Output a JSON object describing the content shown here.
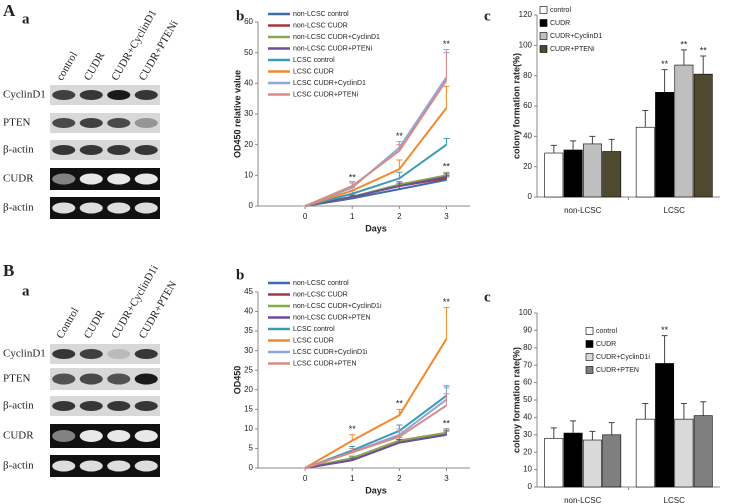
{
  "figure": {
    "blots": [
      {
        "panel": "A",
        "subpanel": "a",
        "lanes": [
          "control",
          "CUDR",
          "CUDR+CyclinD1",
          "CUDR+PTENi"
        ],
        "rows": [
          "CyclinD1",
          "PTEN",
          "β-actin",
          "CUDR",
          "β-actin"
        ]
      },
      {
        "panel": "B",
        "subpanel": "a",
        "lanes": [
          "Control",
          "CUDR",
          "CUDR+CyclinD1i",
          "CUDR+PTEN"
        ],
        "rows": [
          "CyclinD1",
          "PTEN",
          "β-actin",
          "CUDR",
          "β-actin"
        ]
      }
    ]
  },
  "chart_data": [
    {
      "type": "line",
      "panel": "b",
      "y_label": "OD450 relative value",
      "x_label": "Days",
      "categories": [
        "0",
        "1",
        "2",
        "3"
      ],
      "ylim": [
        0,
        60
      ],
      "yticks": [
        0,
        10,
        20,
        30,
        40,
        50,
        60
      ],
      "grid": false,
      "legend": "top-left",
      "series": [
        {
          "name": "non-LCSC control",
          "color": "#3f6ab0",
          "values": [
            0,
            2.5,
            5.5,
            8.5
          ],
          "errors": [
            0,
            0.5,
            1,
            1
          ]
        },
        {
          "name": "non-LCSC CUDR",
          "color": "#a8383a",
          "values": [
            0,
            3,
            6.5,
            9
          ],
          "errors": [
            0,
            0.5,
            1,
            1
          ]
        },
        {
          "name": "non-LCSC CUDR+CyclinD1",
          "color": "#89a94a",
          "values": [
            0,
            3,
            7,
            10
          ],
          "errors": [
            0,
            0.5,
            1,
            1
          ],
          "annotations": [
            null,
            null,
            null,
            "**"
          ]
        },
        {
          "name": "non-LCSC CUDR+PTENi",
          "color": "#6f4f95",
          "values": [
            0,
            3,
            6.5,
            9.5
          ],
          "errors": [
            0,
            0.5,
            1,
            1
          ]
        },
        {
          "name": "LCSC control",
          "color": "#3a9bb5",
          "values": [
            0,
            4,
            9,
            20
          ],
          "errors": [
            0,
            1,
            2,
            2
          ]
        },
        {
          "name": "LCSC CUDR",
          "color": "#f08a2c",
          "values": [
            0,
            5,
            12,
            32
          ],
          "errors": [
            0,
            1,
            3,
            7
          ]
        },
        {
          "name": "LCSC CUDR+CyclinD1",
          "color": "#8ea6d8",
          "values": [
            0,
            6,
            19,
            42
          ],
          "errors": [
            0,
            1.5,
            2,
            9
          ],
          "annotations": [
            null,
            "**",
            "**",
            "**"
          ]
        },
        {
          "name": "LCSC CUDR+PTENi",
          "color": "#d98a88",
          "values": [
            0,
            6.5,
            18,
            41
          ],
          "errors": [
            0,
            1.5,
            2,
            9
          ]
        }
      ]
    },
    {
      "type": "bar",
      "panel": "c",
      "y_label": "colony formation rate(%)",
      "categories": [
        "non-LCSC",
        "LCSC"
      ],
      "ylim": [
        0,
        120
      ],
      "yticks": [
        0,
        20,
        40,
        60,
        80,
        100,
        120
      ],
      "grid": false,
      "legend": "top-left",
      "series": [
        {
          "name": "control",
          "color": "#ffffff",
          "values": [
            29,
            46
          ],
          "errors": [
            5,
            11
          ]
        },
        {
          "name": "CUDR",
          "color": "#000000",
          "values": [
            31,
            69
          ],
          "errors": [
            6,
            15
          ],
          "annotations": [
            null,
            "**"
          ]
        },
        {
          "name": "CUDR+CyclinD1",
          "color": "#bfbfbf",
          "values": [
            35,
            87
          ],
          "errors": [
            5,
            10
          ],
          "annotations": [
            null,
            "**"
          ]
        },
        {
          "name": "CUDR+PTENi",
          "color": "#4f4a2f",
          "values": [
            30,
            81
          ],
          "errors": [
            8,
            12
          ],
          "annotations": [
            null,
            "**"
          ]
        }
      ]
    },
    {
      "type": "line",
      "panel": "b",
      "y_label": "OD450",
      "x_label": "Days",
      "categories": [
        "0",
        "1",
        "2",
        "3"
      ],
      "ylim": [
        0,
        45
      ],
      "yticks": [
        0,
        5,
        10,
        15,
        20,
        25,
        30,
        35,
        40,
        45
      ],
      "grid": false,
      "legend": "top-left",
      "series": [
        {
          "name": "non-LCSC control",
          "color": "#3f6ab0",
          "values": [
            0,
            2,
            6.5,
            8.5
          ],
          "errors": [
            0,
            0.5,
            0.8,
            1
          ]
        },
        {
          "name": "non-LCSC CUDR",
          "color": "#a8383a",
          "values": [
            0,
            2.5,
            7,
            9
          ],
          "errors": [
            0,
            0.5,
            0.8,
            1
          ],
          "annotations": [
            null,
            null,
            null,
            "**"
          ]
        },
        {
          "name": "non-LCSC CUDR+CyclinD1i",
          "color": "#89a94a",
          "values": [
            0,
            2.5,
            7,
            9
          ],
          "errors": [
            0,
            0.5,
            0.8,
            1
          ]
        },
        {
          "name": "non-LCSC CUDR+PTEN",
          "color": "#6f4f95",
          "values": [
            0,
            2,
            6.5,
            8.5
          ],
          "errors": [
            0,
            0.5,
            0.8,
            1
          ]
        },
        {
          "name": "LCSC control",
          "color": "#3a9bb5",
          "values": [
            0,
            4.5,
            9.5,
            18.5
          ],
          "errors": [
            0,
            1,
            1.5,
            2.5
          ]
        },
        {
          "name": "LCSC CUDR",
          "color": "#f08a2c",
          "values": [
            0,
            7,
            13.5,
            33
          ],
          "errors": [
            0,
            1.5,
            1.5,
            8
          ],
          "annotations": [
            null,
            "**",
            "**",
            "**"
          ]
        },
        {
          "name": "LCSC CUDR+CyclinD1i",
          "color": "#8ea6d8",
          "values": [
            0,
            4,
            8.5,
            17.5
          ],
          "errors": [
            0,
            1,
            1.5,
            3
          ]
        },
        {
          "name": "LCSC CUDR+PTEN",
          "color": "#d98a88",
          "values": [
            0,
            4,
            8,
            16
          ],
          "errors": [
            0,
            1,
            1.5,
            3
          ]
        }
      ]
    },
    {
      "type": "bar",
      "panel": "c",
      "y_label": "colony formation rate(%)",
      "categories": [
        "non-LCSC",
        "LCSC"
      ],
      "ylim": [
        0,
        100
      ],
      "yticks": [
        0,
        10,
        20,
        30,
        40,
        50,
        60,
        70,
        80,
        90,
        100
      ],
      "grid": false,
      "legend": "top-left",
      "series": [
        {
          "name": "control",
          "color": "#ffffff",
          "values": [
            28,
            39
          ],
          "errors": [
            6,
            9
          ]
        },
        {
          "name": "CUDR",
          "color": "#000000",
          "values": [
            31,
            71
          ],
          "errors": [
            7,
            16
          ],
          "annotations": [
            null,
            "**"
          ]
        },
        {
          "name": "CUDR+CyclinD1i",
          "color": "#d9d9d9",
          "values": [
            27,
            39
          ],
          "errors": [
            5,
            9
          ]
        },
        {
          "name": "CUDR+PTEN",
          "color": "#7f7f7f",
          "values": [
            30,
            41
          ],
          "errors": [
            7,
            8
          ]
        }
      ]
    }
  ]
}
